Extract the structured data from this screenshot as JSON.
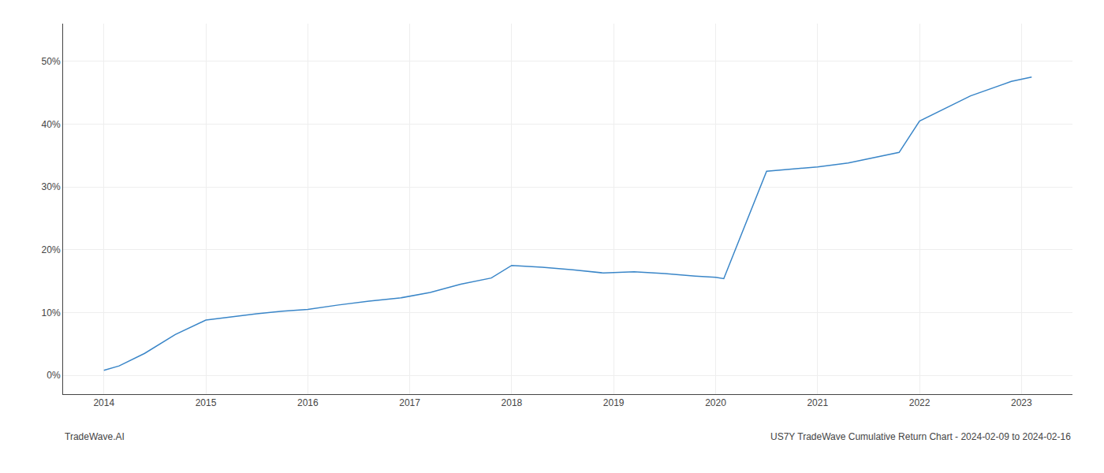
{
  "chart_data": {
    "type": "line",
    "x": [
      2014.0,
      2014.15,
      2014.4,
      2014.7,
      2015.0,
      2015.2,
      2015.5,
      2015.75,
      2016.0,
      2016.3,
      2016.6,
      2016.9,
      2017.2,
      2017.5,
      2017.8,
      2018.0,
      2018.3,
      2018.6,
      2018.9,
      2019.2,
      2019.5,
      2019.8,
      2020.0,
      2020.08,
      2020.5,
      2021.0,
      2021.3,
      2021.8,
      2022.0,
      2022.5,
      2022.9,
      2023.1
    ],
    "values": [
      0.8,
      1.5,
      3.5,
      6.5,
      8.8,
      9.2,
      9.8,
      10.2,
      10.5,
      11.2,
      11.8,
      12.3,
      13.2,
      14.5,
      15.5,
      17.5,
      17.2,
      16.8,
      16.3,
      16.5,
      16.2,
      15.8,
      15.6,
      15.4,
      32.5,
      33.2,
      33.8,
      35.5,
      40.5,
      44.5,
      46.8,
      47.5
    ],
    "color": "#3a86c8",
    "xlim": [
      2013.6,
      2023.5
    ],
    "ylim": [
      -3,
      56
    ],
    "xticks": [
      2014,
      2015,
      2016,
      2017,
      2018,
      2019,
      2020,
      2021,
      2022,
      2023
    ],
    "yticks": [
      {
        "value": 0,
        "label": "0%"
      },
      {
        "value": 10,
        "label": "10%"
      },
      {
        "value": 20,
        "label": "20%"
      },
      {
        "value": 30,
        "label": "30%"
      },
      {
        "value": 40,
        "label": "40%"
      },
      {
        "value": 50,
        "label": "50%"
      }
    ],
    "grid": true,
    "annotations": [
      "TradeWave.AI",
      "US7Y TradeWave Cumulative Return Chart - 2024-02-09 to 2024-02-16"
    ]
  }
}
